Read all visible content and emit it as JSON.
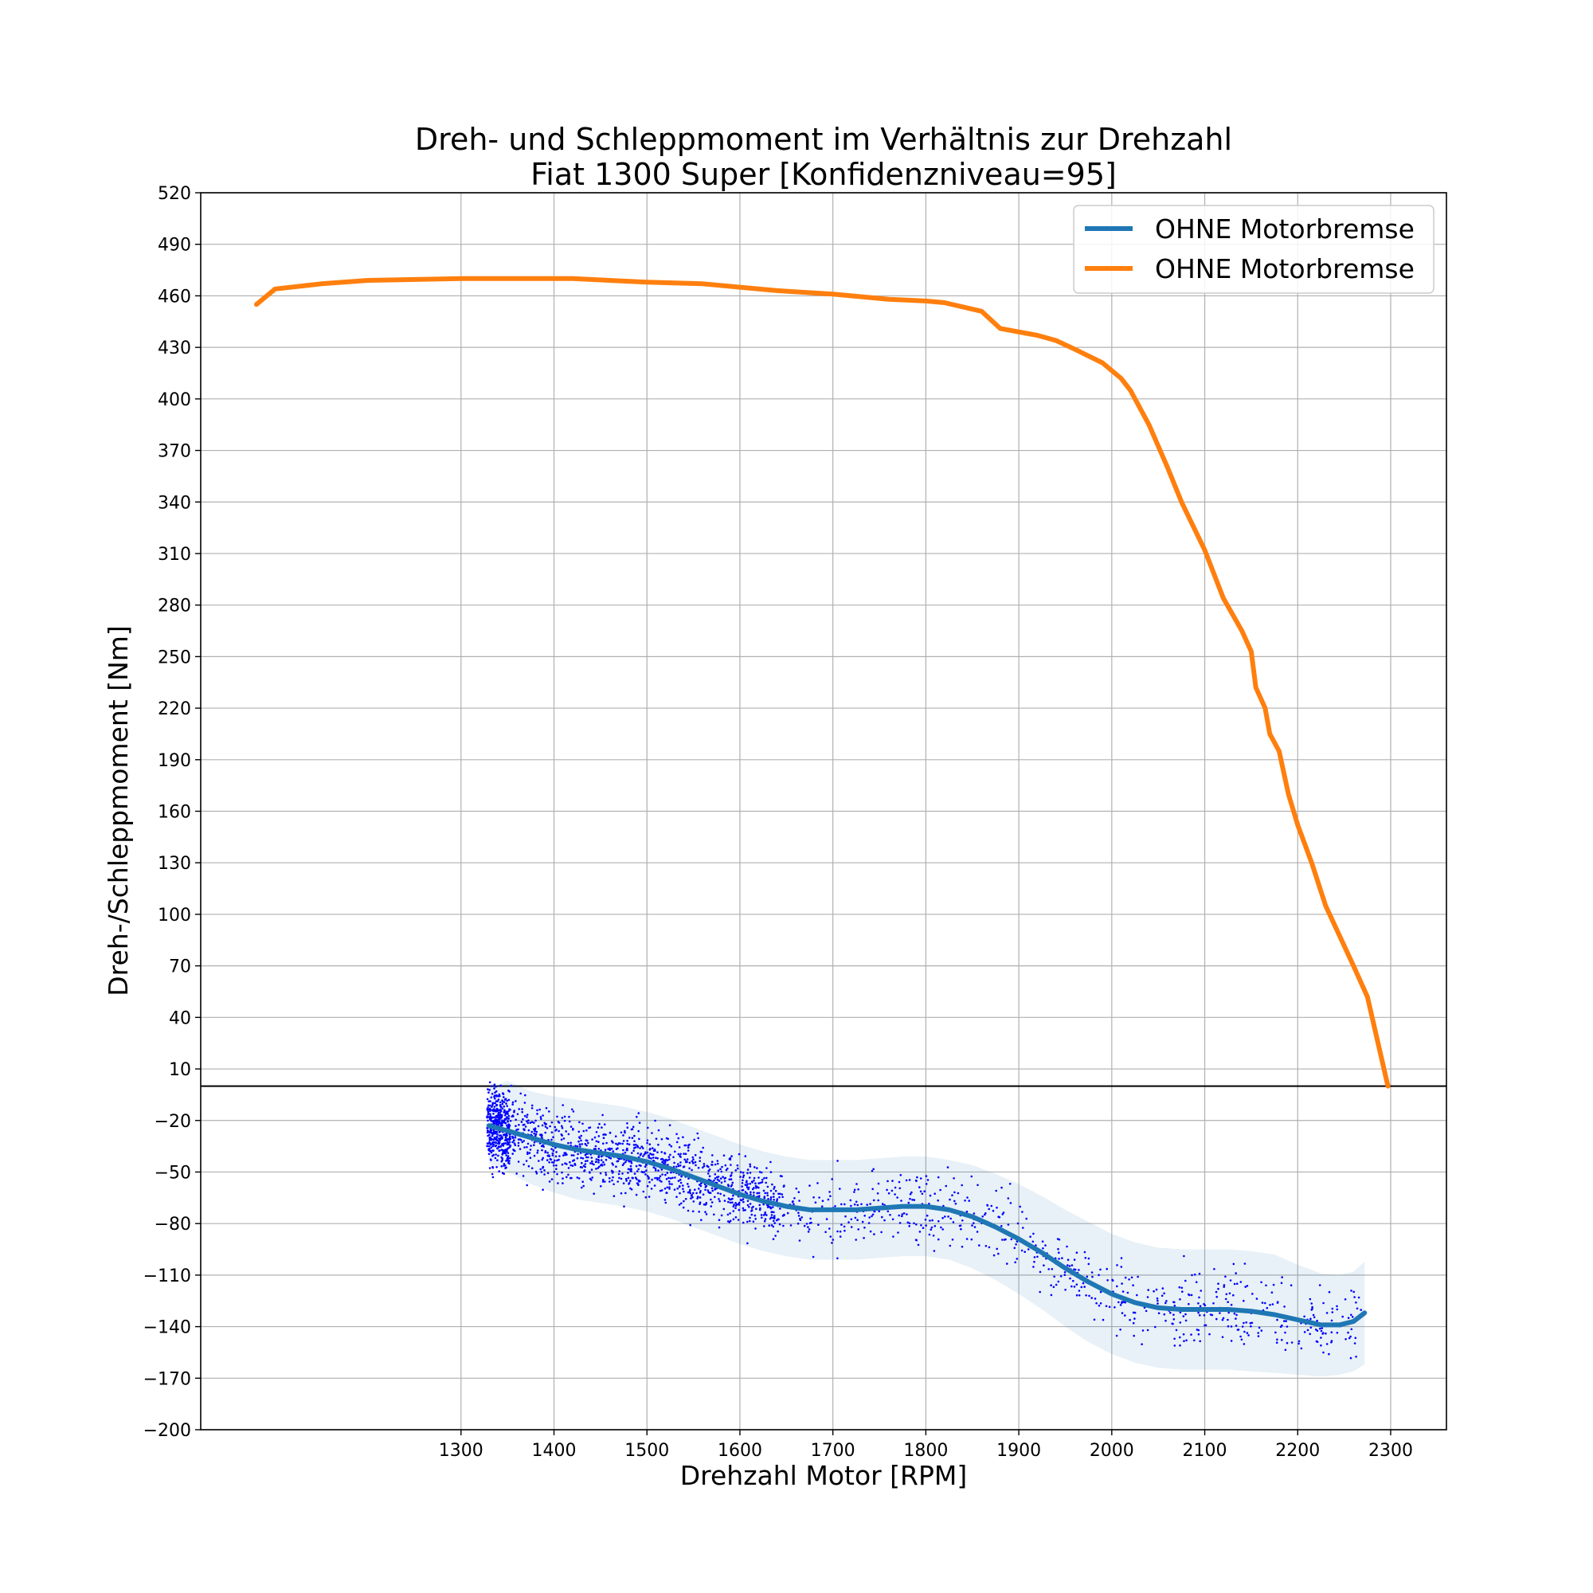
{
  "chart_data": {
    "type": "line",
    "title": [
      "Dreh- und Schleppmoment im Verhältnis zur Drehzahl",
      "Fiat 1300 Super [Konfidenzniveau=95]"
    ],
    "xlabel": "Drehzahl Motor [RPM]",
    "ylabel": "Dreh-/Schleppmoment [Nm]",
    "xlim": [
      1020,
      2360
    ],
    "ylim": [
      -200,
      520
    ],
    "xticks": [
      1300,
      1400,
      1500,
      1600,
      1700,
      1800,
      1900,
      2000,
      2100,
      2200,
      2300
    ],
    "xtick_labels": [
      "1300",
      "1400",
      "1500",
      "1600",
      "1700",
      "1800",
      "1900",
      "2000",
      "2100",
      "2200",
      "2300"
    ],
    "yticks": [
      -200,
      -170,
      -140,
      -110,
      -80,
      -50,
      -20,
      10,
      40,
      70,
      100,
      130,
      160,
      190,
      220,
      250,
      280,
      310,
      340,
      370,
      400,
      430,
      460,
      490,
      520
    ],
    "ytick_labels": [
      "−200",
      "−170",
      "−140",
      "−110",
      "−80",
      "−50",
      "−20",
      "10",
      "40",
      "70",
      "100",
      "130",
      "160",
      "190",
      "220",
      "250",
      "280",
      "310",
      "340",
      "370",
      "400",
      "430",
      "460",
      "490",
      "520"
    ],
    "grid": true,
    "reference_line_y": 0,
    "legend_position": "upper right",
    "legend": [
      "OHNE Motorbremse",
      "OHNE Motorbremse"
    ],
    "colors": {
      "regression": "#1f77b4",
      "torque": "#ff7f0e",
      "scatter": "#0000ff",
      "band": "#1f77b4"
    },
    "series": [
      {
        "name": "OHNE Motorbremse",
        "kind": "regression",
        "x": [
          1330,
          1350,
          1375,
          1400,
          1425,
          1450,
          1475,
          1500,
          1525,
          1550,
          1575,
          1600,
          1625,
          1650,
          1675,
          1700,
          1725,
          1750,
          1775,
          1800,
          1825,
          1850,
          1875,
          1900,
          1925,
          1950,
          1975,
          2000,
          2025,
          2050,
          2075,
          2100,
          2125,
          2150,
          2175,
          2200,
          2225,
          2245,
          2260,
          2272
        ],
        "y": [
          -23,
          -26,
          -30,
          -34,
          -37,
          -39,
          -41,
          -44,
          -48,
          -53,
          -58,
          -63,
          -67,
          -70,
          -72,
          -72,
          -72,
          -71,
          -70,
          -70,
          -72,
          -76,
          -82,
          -89,
          -97,
          -106,
          -114,
          -121,
          -126,
          -129,
          -130,
          -130,
          -130,
          -131,
          -133,
          -136,
          -139,
          -139,
          -137,
          -132
        ]
      },
      {
        "name": "OHNE Motorbremse",
        "kind": "torque",
        "x": [
          1080,
          1100,
          1150,
          1200,
          1300,
          1400,
          1420,
          1500,
          1560,
          1600,
          1640,
          1700,
          1760,
          1800,
          1820,
          1860,
          1880,
          1920,
          1940,
          1960,
          1990,
          2010,
          2020,
          2040,
          2060,
          2075,
          2100,
          2120,
          2140,
          2150,
          2155,
          2165,
          2170,
          2180,
          2190,
          2200,
          2215,
          2230,
          2260,
          2275,
          2297
        ],
        "y": [
          455,
          464,
          467,
          469,
          470,
          470,
          470,
          468,
          467,
          465,
          463,
          461,
          458,
          457,
          456,
          451,
          441,
          437,
          434,
          429,
          421,
          412,
          405,
          385,
          360,
          340,
          312,
          284,
          265,
          253,
          232,
          220,
          205,
          195,
          170,
          152,
          130,
          105,
          70,
          52,
          0
        ]
      }
    ],
    "confidence_band": {
      "x": [
        1330,
        1350,
        1375,
        1400,
        1425,
        1450,
        1475,
        1500,
        1525,
        1550,
        1575,
        1600,
        1625,
        1650,
        1675,
        1700,
        1725,
        1750,
        1775,
        1800,
        1825,
        1850,
        1875,
        1900,
        1925,
        1950,
        1975,
        2000,
        2025,
        2050,
        2075,
        2100,
        2125,
        2150,
        2175,
        2200,
        2225,
        2245,
        2260,
        2272
      ],
      "lower": [
        -45,
        -50,
        -57,
        -62,
        -66,
        -68,
        -70,
        -73,
        -77,
        -82,
        -87,
        -92,
        -96,
        -99,
        -101,
        -101,
        -101,
        -100,
        -99,
        -99,
        -101,
        -106,
        -113,
        -121,
        -130,
        -140,
        -149,
        -156,
        -161,
        -164,
        -165,
        -165,
        -165,
        -166,
        -167,
        -168,
        -169,
        -168,
        -166,
        -162
      ],
      "upper": [
        -1,
        3,
        -3,
        -6,
        -8,
        -10,
        -12,
        -15,
        -19,
        -24,
        -29,
        -34,
        -38,
        -41,
        -43,
        -43,
        -43,
        -42,
        -41,
        -41,
        -43,
        -46,
        -51,
        -57,
        -64,
        -72,
        -79,
        -86,
        -91,
        -94,
        -95,
        -95,
        -95,
        -96,
        -98,
        -104,
        -109,
        -110,
        -108,
        -102
      ]
    },
    "scatter": {
      "x_range": [
        1328,
        2272
      ],
      "points": 2200,
      "description_of_spread": "spread around regression line"
    }
  }
}
